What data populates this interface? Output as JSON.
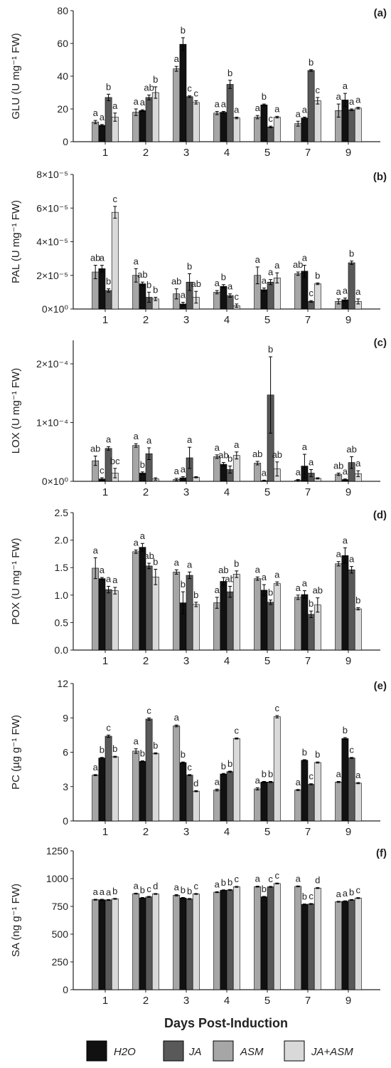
{
  "colors": {
    "H2O": "#111111",
    "JA": "#595959",
    "ASM": "#a6a6a6",
    "JA+ASM": "#d9d9d9",
    "axis": "#222222"
  },
  "legend": {
    "position": "bottom",
    "items": [
      {
        "key": "H2O",
        "label": "H2O"
      },
      {
        "key": "JA",
        "label": "JA"
      },
      {
        "key": "ASM",
        "label": "ASM"
      },
      {
        "key": "JA+ASM",
        "label": "JA+ASM"
      }
    ]
  },
  "xlabel": "Days Post-Induction",
  "chart_data": [
    {
      "panel": "(a)",
      "type": "bar",
      "ylabel": "GLU (U mg⁻¹ FW)",
      "categories": [
        "1",
        "2",
        "3",
        "4",
        "5",
        "7",
        "9"
      ],
      "ylim": [
        0,
        80
      ],
      "yticks": [
        0,
        20,
        40,
        60,
        80
      ],
      "ytick_labels": [
        "0",
        "20",
        "40",
        "60",
        "80"
      ],
      "series": [
        {
          "name": "ASM",
          "values": [
            12,
            18,
            44.5,
            17.5,
            15,
            11,
            19
          ],
          "errors": [
            1,
            2,
            1.5,
            1,
            1,
            1.5,
            4
          ],
          "letters": [
            "a",
            "a",
            "a",
            "a",
            "a",
            "a",
            "a"
          ]
        },
        {
          "name": "H2O",
          "values": [
            10,
            19,
            59.5,
            18,
            22.5,
            14.5,
            25.5
          ],
          "errors": [
            0.5,
            0.5,
            4,
            0.5,
            0.5,
            0.5,
            4
          ],
          "letters": [
            "a",
            "a",
            "b",
            "a",
            "b",
            "a",
            "a"
          ]
        },
        {
          "name": "JA",
          "values": [
            27,
            27,
            27.5,
            35,
            9,
            43.5,
            19.5
          ],
          "errors": [
            2,
            1.5,
            0.5,
            2.5,
            0.5,
            0.5,
            0.5
          ],
          "letters": [
            "b",
            "ab",
            "c",
            "b",
            "c",
            "b",
            "a"
          ]
        },
        {
          "name": "JA+ASM",
          "values": [
            15,
            30,
            24,
            14.5,
            15,
            25,
            20.5
          ],
          "errors": [
            2.5,
            3.5,
            1,
            0.5,
            0.5,
            2,
            0.5
          ],
          "letters": [
            "a",
            "b",
            "c",
            "a",
            "a",
            "c",
            "a"
          ]
        }
      ]
    },
    {
      "panel": "(b)",
      "type": "bar",
      "ylabel": "PAL (U mg⁻¹ FW)",
      "categories": [
        "1",
        "2",
        "3",
        "4",
        "5",
        "7",
        "9"
      ],
      "ylim": [
        0,
        8e-05
      ],
      "yticks": [
        0,
        2e-05,
        4e-05,
        6e-05,
        8e-05
      ],
      "ytick_labels": [
        "0×10⁰",
        "2×10⁻⁵",
        "4×10⁻⁵",
        "6×10⁻⁵",
        "8×10⁻⁵"
      ],
      "series": [
        {
          "name": "ASM",
          "values": [
            2.2e-05,
            2e-05,
            9e-06,
            1e-05,
            2e-05,
            2.1e-05,
            4.5e-06
          ],
          "errors": [
            4e-06,
            4e-06,
            3e-06,
            1e-06,
            5e-06,
            1e-06,
            1.5e-06
          ],
          "letters": [
            "ab",
            "a",
            "ab",
            "a",
            "a",
            "ab",
            "a"
          ]
        },
        {
          "name": "H2O",
          "values": [
            2.4e-05,
            1.5e-05,
            3e-06,
            1.35e-05,
            1.15e-05,
            2.25e-05,
            5.5e-06
          ],
          "errors": [
            2e-06,
            1e-06,
            1e-06,
            1e-06,
            1e-06,
            3.5e-06,
            1e-06
          ],
          "letters": [
            "a",
            "ab",
            "a",
            "b",
            "a",
            "a",
            "a"
          ]
        },
        {
          "name": "JA",
          "values": [
            1.1e-05,
            7e-06,
            1.6e-05,
            8e-06,
            1.6e-05,
            4.5e-06,
            2.75e-05
          ],
          "errors": [
            1e-06,
            3e-06,
            5e-06,
            1e-06,
            1.5e-06,
            5e-07,
            1e-06
          ],
          "letters": [
            "b",
            "b",
            "b",
            "a",
            "a",
            "c",
            "b"
          ]
        },
        {
          "name": "JA+ASM",
          "values": [
            5.75e-05,
            6e-06,
            7e-06,
            2e-06,
            1.85e-05,
            1.5e-05,
            4.5e-06
          ],
          "errors": [
            3.5e-06,
            1e-06,
            3.5e-06,
            1e-06,
            3e-06,
            5e-07,
            1.5e-06
          ],
          "letters": [
            "c",
            "b",
            "ab",
            "c",
            "a",
            "b",
            "a"
          ]
        }
      ]
    },
    {
      "panel": "(c)",
      "type": "bar",
      "ylabel": "LOX (U mg⁻¹ FW)",
      "categories": [
        "1",
        "2",
        "3",
        "4",
        "5",
        "7",
        "9"
      ],
      "ylim": [
        0,
        0.00024
      ],
      "yticks": [
        0,
        0.0001,
        0.0002
      ],
      "ytick_labels": [
        "0×10⁰",
        "1×10⁻⁴",
        "2×10⁻⁴"
      ],
      "series": [
        {
          "name": "ASM",
          "values": [
            3.5e-05,
            6.1e-05,
            3e-06,
            4.2e-05,
            3.1e-05,
            2e-06,
            1.2e-05
          ],
          "errors": [
            8e-06,
            3e-06,
            2e-06,
            3e-06,
            3e-06,
            1e-06,
            2e-06
          ],
          "letters": [
            "ab",
            "a",
            "a",
            "a",
            "ab",
            "a",
            "ab"
          ]
        },
        {
          "name": "H2O",
          "values": [
            4e-06,
            1.4e-05,
            6e-06,
            2.9e-05,
            1e-06,
            2.6e-05,
            3e-06
          ],
          "errors": [
            2e-06,
            2e-06,
            2e-06,
            3e-06,
            1e-06,
            2e-05,
            1e-06
          ],
          "letters": [
            "c",
            "b",
            "a",
            "ab",
            "a",
            "a",
            "a"
          ]
        },
        {
          "name": "JA",
          "values": [
            5.6e-05,
            4.7e-05,
            4e-05,
            2e-05,
            0.000147,
            1.4e-05,
            3.2e-05
          ],
          "errors": [
            3e-06,
            1e-05,
            1.8e-05,
            6e-06,
            6.5e-05,
            6e-06,
            1e-05
          ],
          "letters": [
            "a",
            "a",
            "a",
            "b",
            "b",
            "a",
            "ab"
          ]
        },
        {
          "name": "JA+ASM",
          "values": [
            1.4e-05,
            4e-06,
            7e-06,
            4.4e-05,
            2.1e-05,
            5e-06,
            1.3e-05
          ],
          "errors": [
            8e-06,
            2e-06,
            1e-06,
            6e-06,
            1.2e-05,
            1e-06,
            5e-06
          ],
          "letters": [
            "bc",
            "",
            "",
            "a",
            "ab",
            "",
            "a"
          ]
        }
      ]
    },
    {
      "panel": "(d)",
      "type": "bar",
      "ylabel": "POX (U mg⁻¹ FW)",
      "categories": [
        "1",
        "2",
        "3",
        "4",
        "5",
        "7",
        "9"
      ],
      "ylim": [
        0,
        2.5
      ],
      "yticks": [
        0,
        0.5,
        1.0,
        1.5,
        2.0,
        2.5
      ],
      "ytick_labels": [
        "0.0",
        "0.5",
        "1.0",
        "1.5",
        "2.0",
        "2.5"
      ],
      "series": [
        {
          "name": "ASM",
          "values": [
            1.49,
            1.79,
            1.42,
            0.86,
            1.3,
            0.96,
            1.57
          ],
          "errors": [
            0.19,
            0.03,
            0.04,
            0.1,
            0.03,
            0.04,
            0.04
          ],
          "letters": [
            "a",
            "a",
            "a",
            "a",
            "a",
            "a",
            "a"
          ]
        },
        {
          "name": "H2O",
          "values": [
            1.3,
            1.87,
            0.86,
            1.25,
            1.09,
            1.01,
            1.72
          ],
          "errors": [
            0.02,
            0.07,
            0.2,
            0.07,
            0.1,
            0.07,
            0.14
          ],
          "letters": [
            "a",
            "a",
            "b",
            "ab",
            "a",
            "a",
            "a"
          ]
        },
        {
          "name": "JA",
          "values": [
            1.1,
            1.53,
            1.36,
            1.06,
            0.87,
            0.65,
            1.46
          ],
          "errors": [
            0.06,
            0.05,
            0.06,
            0.1,
            0.04,
            0.06,
            0.06
          ],
          "letters": [
            "a",
            "ab",
            "a",
            "ab",
            "b",
            "b",
            "a"
          ]
        },
        {
          "name": "JA+ASM",
          "values": [
            1.08,
            1.33,
            0.83,
            1.38,
            1.21,
            0.82,
            0.75
          ],
          "errors": [
            0.06,
            0.14,
            0.04,
            0.06,
            0.03,
            0.13,
            0.02
          ],
          "letters": [
            "a",
            "b",
            "b",
            "b",
            "a",
            "ab",
            "b"
          ]
        }
      ]
    },
    {
      "panel": "(e)",
      "type": "bar",
      "ylabel": "PC (µg g⁻¹ FW)",
      "categories": [
        "1",
        "2",
        "3",
        "4",
        "5",
        "7",
        "9"
      ],
      "ylim": [
        0,
        12
      ],
      "yticks": [
        0,
        3,
        6,
        9,
        12
      ],
      "ytick_labels": [
        "0",
        "3",
        "6",
        "9",
        "12"
      ],
      "series": [
        {
          "name": "ASM",
          "values": [
            4.0,
            6.1,
            8.3,
            2.7,
            2.8,
            2.7,
            3.4
          ],
          "errors": [
            0.05,
            0.2,
            0.08,
            0.08,
            0.1,
            0.05,
            0.05
          ],
          "letters": [
            "a",
            "a",
            "a",
            "a",
            "a",
            "a",
            "a"
          ]
        },
        {
          "name": "H2O",
          "values": [
            5.5,
            5.2,
            5.1,
            4.1,
            3.4,
            5.3,
            7.2
          ],
          "errors": [
            0.05,
            0.05,
            0.05,
            0.05,
            0.05,
            0.05,
            0.08
          ],
          "letters": [
            "b",
            "b",
            "b",
            "b",
            "b",
            "b",
            "b"
          ]
        },
        {
          "name": "JA",
          "values": [
            7.4,
            8.9,
            4.0,
            4.3,
            3.4,
            3.2,
            5.5
          ],
          "errors": [
            0.1,
            0.1,
            0.05,
            0.05,
            0.05,
            0.05,
            0.05
          ],
          "letters": [
            "c",
            "c",
            "c",
            "b",
            "b",
            "c",
            "c"
          ]
        },
        {
          "name": "JA+ASM",
          "values": [
            5.6,
            5.9,
            2.6,
            7.2,
            9.1,
            5.1,
            3.3
          ],
          "errors": [
            0.05,
            0.05,
            0.05,
            0.05,
            0.1,
            0.05,
            0.05
          ],
          "letters": [
            "b",
            "b",
            "d",
            "c",
            "c",
            "b",
            "a"
          ]
        }
      ]
    },
    {
      "panel": "(f)",
      "type": "bar",
      "ylabel": "SA (ng g⁻¹ FW)",
      "categories": [
        "1",
        "2",
        "3",
        "4",
        "5",
        "7",
        "9"
      ],
      "ylim": [
        0,
        1250
      ],
      "yticks": [
        0,
        250,
        500,
        750,
        1000,
        1250
      ],
      "ytick_labels": [
        "0",
        "250",
        "500",
        "750",
        "1000",
        "1250"
      ],
      "series": [
        {
          "name": "ASM",
          "values": [
            810,
            865,
            850,
            878,
            928,
            930,
            792
          ],
          "errors": [
            4,
            4,
            6,
            4,
            4,
            4,
            4
          ],
          "letters": [
            "a",
            "a",
            "a",
            "a",
            "a",
            "a",
            "a"
          ]
        },
        {
          "name": "H2O",
          "values": [
            810,
            826,
            826,
            895,
            836,
            768,
            796
          ],
          "errors": [
            4,
            4,
            4,
            4,
            4,
            4,
            4
          ],
          "letters": [
            "a",
            "b",
            "b",
            "b",
            "b",
            "b",
            "a"
          ]
        },
        {
          "name": "JA",
          "values": [
            808,
            836,
            817,
            898,
            926,
            772,
            808
          ],
          "errors": [
            4,
            4,
            4,
            4,
            4,
            4,
            4
          ],
          "letters": [
            "a",
            "c",
            "b",
            "b",
            "c",
            "c",
            "b"
          ]
        },
        {
          "name": "JA+ASM",
          "values": [
            818,
            862,
            862,
            926,
            956,
            915,
            825
          ],
          "errors": [
            4,
            4,
            4,
            4,
            4,
            4,
            4
          ],
          "letters": [
            "b",
            "d",
            "c",
            "c",
            "c",
            "d",
            "c"
          ]
        }
      ]
    }
  ]
}
